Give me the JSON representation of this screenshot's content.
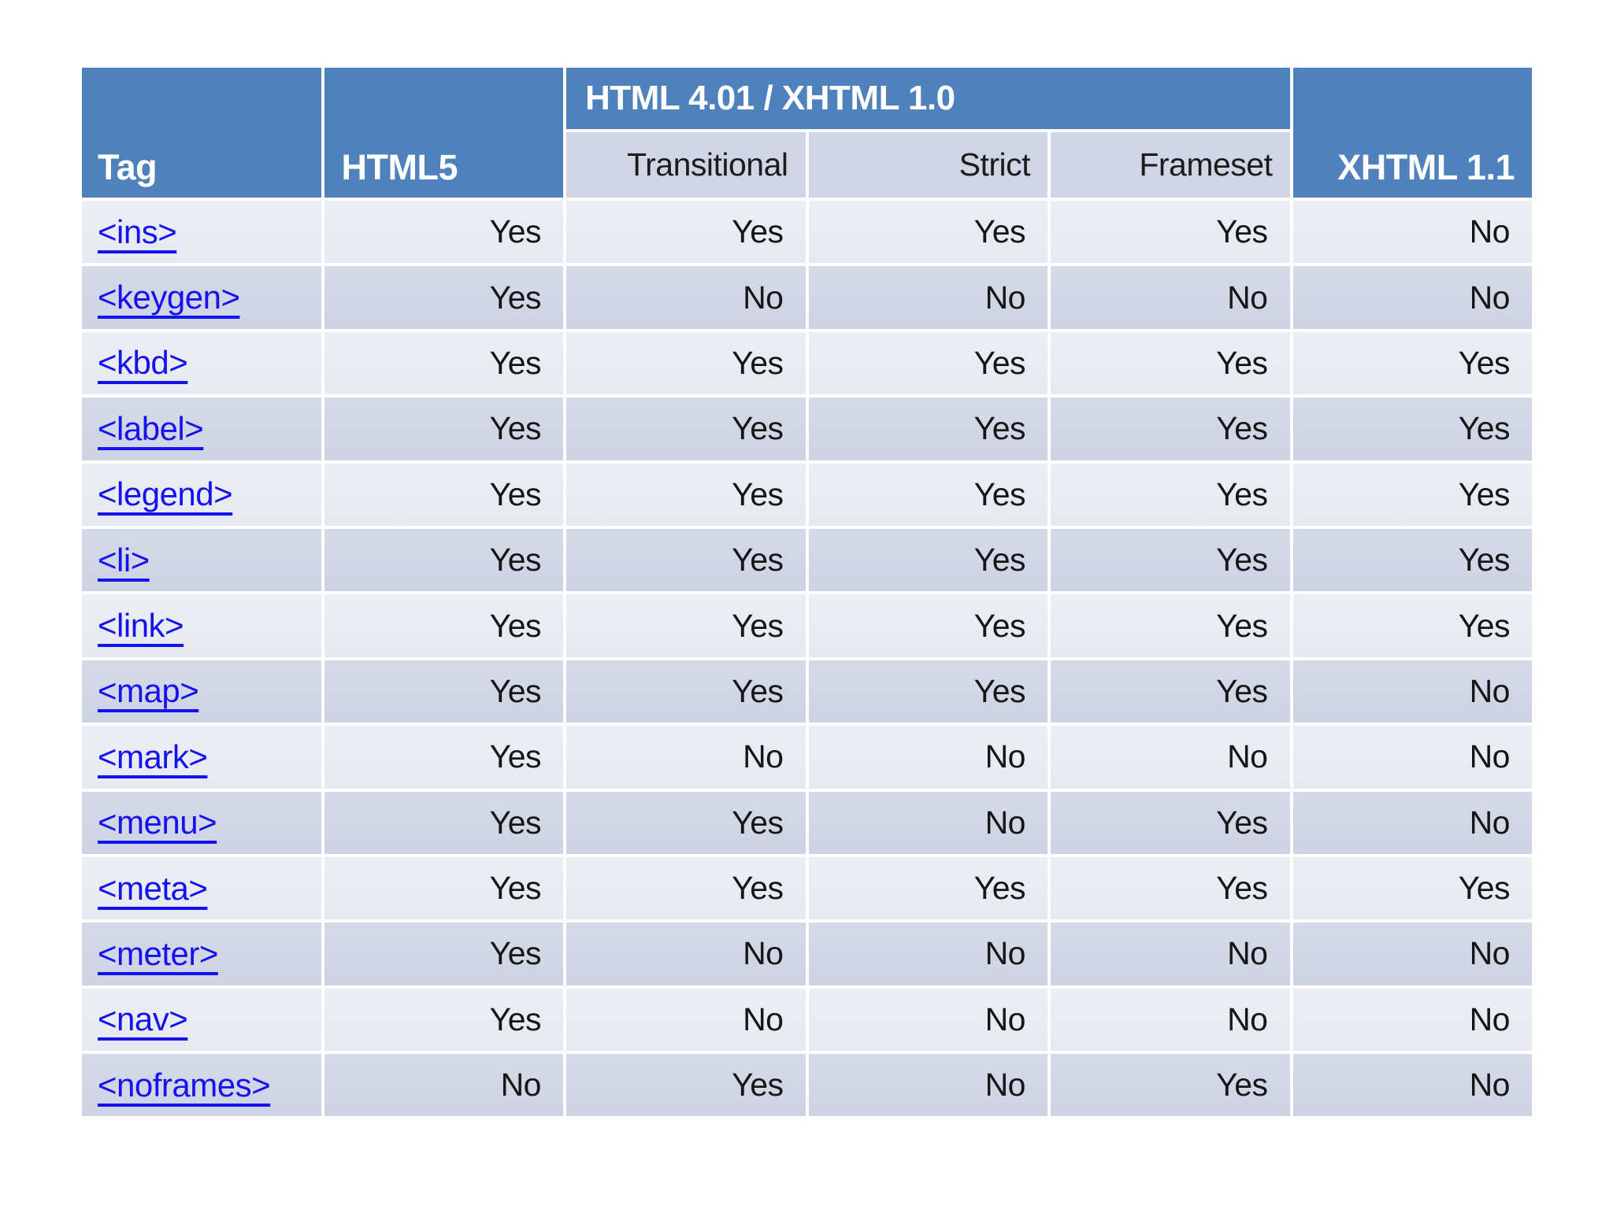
{
  "slide": {
    "background_color": "#FFFFFF"
  },
  "table": {
    "col_tag": "Tag",
    "col_html5": "HTML5",
    "group_header": "HTML 4.01 / XHTML 1.0",
    "sub_headers": [
      "Transitional",
      "Strict",
      "Frameset"
    ],
    "col_xhtml11": "XHTML 1.1",
    "columns": [
      "Tag",
      "HTML5",
      "Transitional",
      "Strict",
      "Frameset",
      "XHTML 1.1"
    ],
    "rows": [
      {
        "tag": "<ins>",
        "html5": "Yes",
        "transitional": "Yes",
        "strict": "Yes",
        "frameset": "Yes",
        "xhtml11": "No"
      },
      {
        "tag": "<keygen>",
        "html5": "Yes",
        "transitional": "No",
        "strict": "No",
        "frameset": "No",
        "xhtml11": "No"
      },
      {
        "tag": "<kbd>",
        "html5": "Yes",
        "transitional": "Yes",
        "strict": "Yes",
        "frameset": "Yes",
        "xhtml11": "Yes"
      },
      {
        "tag": "<label>",
        "html5": "Yes",
        "transitional": "Yes",
        "strict": "Yes",
        "frameset": "Yes",
        "xhtml11": "Yes"
      },
      {
        "tag": "<legend>",
        "html5": "Yes",
        "transitional": "Yes",
        "strict": "Yes",
        "frameset": "Yes",
        "xhtml11": "Yes"
      },
      {
        "tag": "<li>",
        "html5": "Yes",
        "transitional": "Yes",
        "strict": "Yes",
        "frameset": "Yes",
        "xhtml11": "Yes"
      },
      {
        "tag": "<link>",
        "html5": "Yes",
        "transitional": "Yes",
        "strict": "Yes",
        "frameset": "Yes",
        "xhtml11": "Yes"
      },
      {
        "tag": "<map>",
        "html5": "Yes",
        "transitional": "Yes",
        "strict": "Yes",
        "frameset": "Yes",
        "xhtml11": "No"
      },
      {
        "tag": "<mark>",
        "html5": "Yes",
        "transitional": "No",
        "strict": "No",
        "frameset": "No",
        "xhtml11": "No"
      },
      {
        "tag": "<menu>",
        "html5": "Yes",
        "transitional": "Yes",
        "strict": "No",
        "frameset": "Yes",
        "xhtml11": "No"
      },
      {
        "tag": "<meta>",
        "html5": "Yes",
        "transitional": "Yes",
        "strict": "Yes",
        "frameset": "Yes",
        "xhtml11": "Yes"
      },
      {
        "tag": "<meter>",
        "html5": "Yes",
        "transitional": "No",
        "strict": "No",
        "frameset": "No",
        "xhtml11": "No"
      },
      {
        "tag": "<nav>",
        "html5": "Yes",
        "transitional": "No",
        "strict": "No",
        "frameset": "No",
        "xhtml11": "No"
      },
      {
        "tag": "<noframes>",
        "html5": "No",
        "transitional": "Yes",
        "strict": "No",
        "frameset": "Yes",
        "xhtml11": "No"
      }
    ],
    "colors": {
      "header_blue": "#4F81BD",
      "header_text": "#FFFFFF",
      "subheader_bg": "#CFD5E4",
      "row_light": "#E9EBF2",
      "row_dark": "#D0D6E5",
      "link_blue": "#1512F0",
      "value_text": "#161616"
    }
  }
}
